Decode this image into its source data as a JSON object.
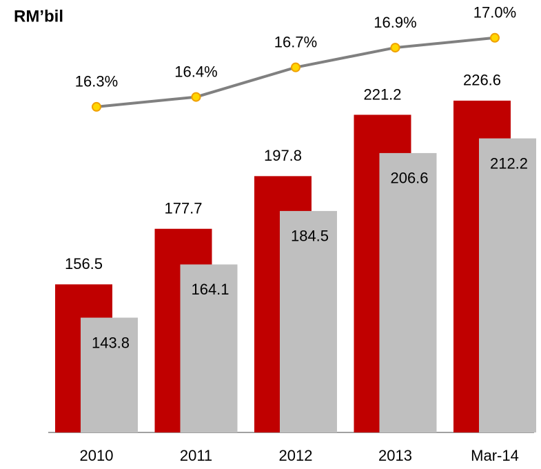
{
  "chart_data": {
    "type": "bar",
    "title": "RM’bil",
    "categories": [
      "2010",
      "2011",
      "2012",
      "2013",
      "Mar-14"
    ],
    "ylim": [
      100,
      260
    ],
    "y2lim": [
      13,
      17.25
    ],
    "series": [
      {
        "name": null,
        "type": "bar",
        "color": "#c00000",
        "values": [
          156.5,
          177.7,
          197.8,
          221.2,
          226.6
        ]
      },
      {
        "name": null,
        "type": "bar",
        "color": "#bfbfbf",
        "values": [
          143.8,
          164.1,
          184.5,
          206.6,
          212.2
        ]
      },
      {
        "name": null,
        "type": "line",
        "axis": "y2",
        "color": "#808080",
        "marker_color": "#ffd700",
        "values": [
          16.3,
          16.4,
          16.7,
          16.9,
          17.0
        ],
        "value_labels": [
          "16.3%",
          "16.4%",
          "16.7%",
          "16.9%",
          "17.0%"
        ]
      }
    ]
  }
}
